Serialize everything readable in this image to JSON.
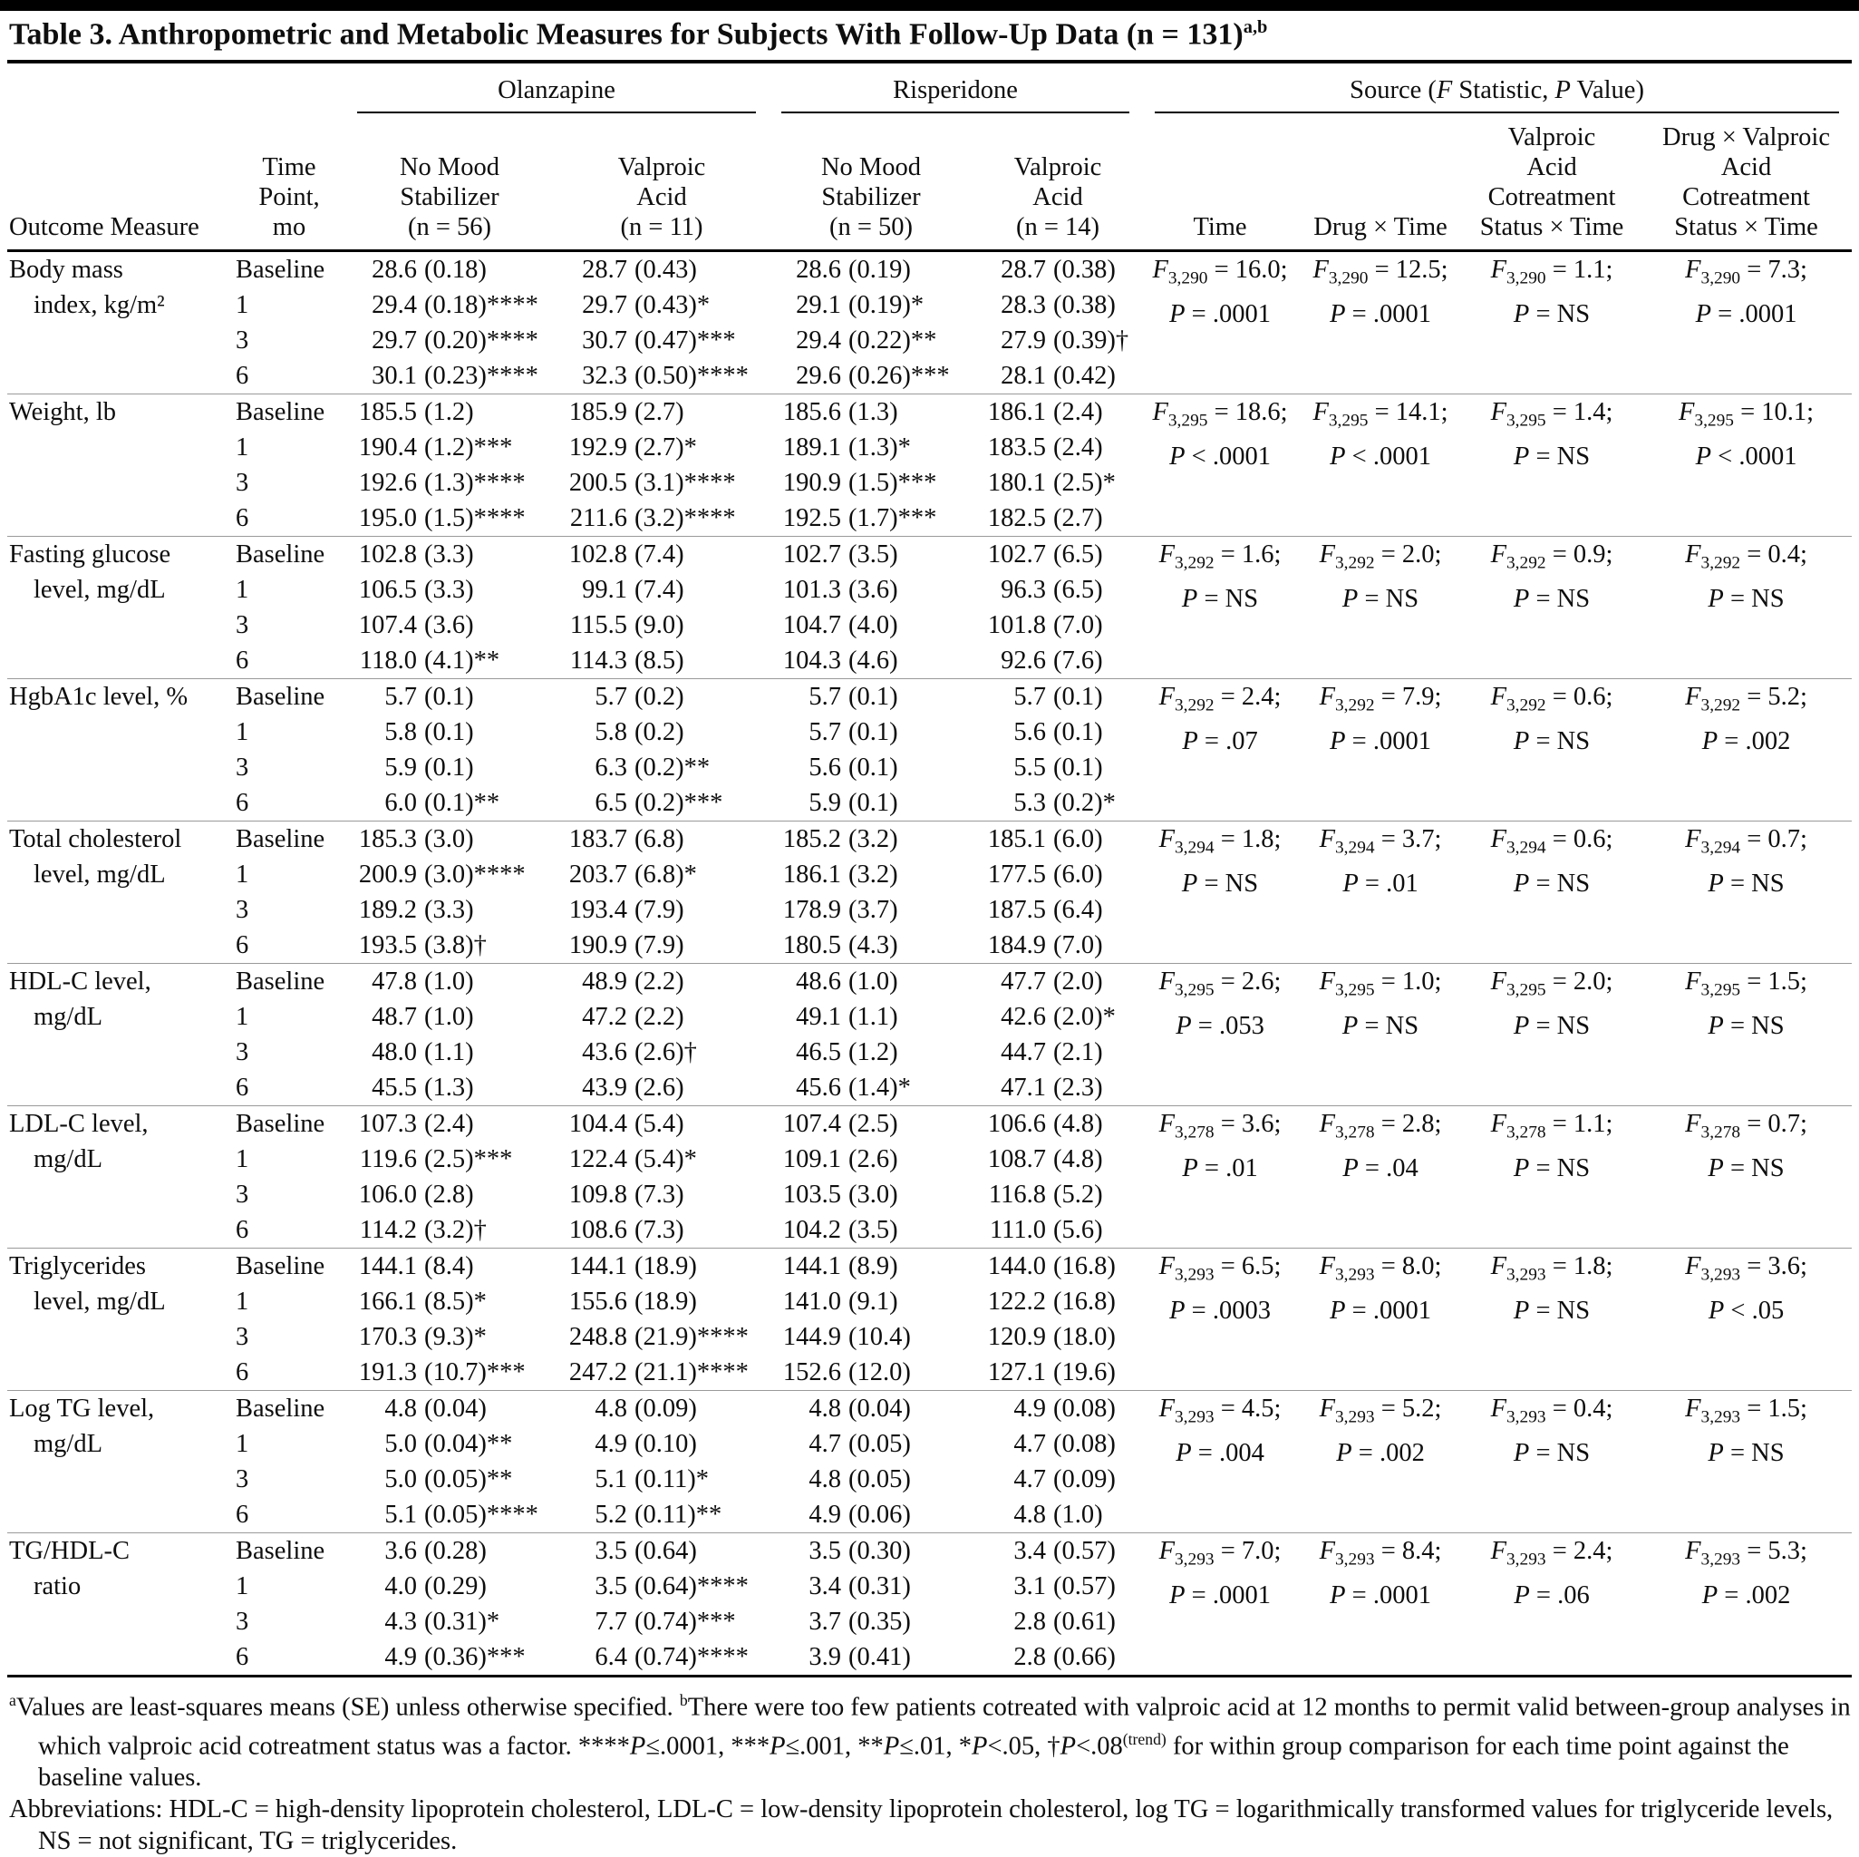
{
  "title": {
    "runs": [
      {
        "t": "Table 3. Anthropometric and Metabolic Measures for Subjects With Follow-Up Data (n = 131)"
      },
      {
        "t": "a,b",
        "sup": true
      }
    ]
  },
  "header": {
    "outcome": "Outcome Measure",
    "time_point": [
      "Time",
      "Point,",
      "mo"
    ],
    "olanzapine": {
      "label": "Olanzapine",
      "col1": [
        "No Mood",
        "Stabilizer",
        "(n = 56)"
      ],
      "col2": [
        "Valproic",
        "Acid",
        "(n = 11)"
      ]
    },
    "risperidone": {
      "label": "Risperidone",
      "col1": [
        "No Mood",
        "Stabilizer",
        "(n = 50)"
      ],
      "col2": [
        "Valproic",
        "Acid",
        "(n = 14)"
      ]
    },
    "source": {
      "label_runs": [
        {
          "t": "Source ("
        },
        {
          "t": "F",
          "i": true
        },
        {
          "t": " Statistic, "
        },
        {
          "t": "P",
          "i": true
        },
        {
          "t": " Value)"
        }
      ],
      "col1": [
        "Time"
      ],
      "col2": [
        "Drug × Time"
      ],
      "col3": [
        "Valproic",
        "Acid",
        "Cotreatment",
        "Status × Time"
      ],
      "col4": [
        "Drug × Valproic",
        "Acid",
        "Cotreatment",
        "Status × Time"
      ]
    }
  },
  "measures": [
    {
      "name": [
        "Body mass",
        "index, kg/m²"
      ],
      "rows": [
        {
          "time": "Baseline",
          "v": [
            "28.6 (0.18)",
            "28.7 (0.43)",
            "28.6 (0.19)",
            "28.7 (0.38)"
          ]
        },
        {
          "time": "1",
          "v": [
            "29.4 (0.18)****",
            "29.7 (0.43)*",
            "29.1 (0.19)*",
            "28.3 (0.38)"
          ]
        },
        {
          "time": "3",
          "v": [
            "29.7 (0.20)****",
            "30.7 (0.47)***",
            "29.4 (0.22)**",
            "27.9 (0.39)†"
          ]
        },
        {
          "time": "6",
          "v": [
            "30.1 (0.23)****",
            "32.3 (0.50)****",
            "29.6 (0.26)***",
            "28.1 (0.42)"
          ]
        }
      ],
      "stats": [
        {
          "df": "3,290",
          "f": "16.0",
          "p": "= .0001"
        },
        {
          "df": "3,290",
          "f": "12.5",
          "p": "= .0001"
        },
        {
          "df": "3,290",
          "f": "1.1",
          "p": "= NS"
        },
        {
          "df": "3,290",
          "f": "7.3",
          "p": "= .0001"
        }
      ]
    },
    {
      "name": [
        "Weight, lb"
      ],
      "rows": [
        {
          "time": "Baseline",
          "v": [
            "185.5 (1.2)",
            "185.9 (2.7)",
            "185.6 (1.3)",
            "186.1 (2.4)"
          ]
        },
        {
          "time": "1",
          "v": [
            "190.4 (1.2)***",
            "192.9 (2.7)*",
            "189.1 (1.3)*",
            "183.5 (2.4)"
          ]
        },
        {
          "time": "3",
          "v": [
            "192.6 (1.3)****",
            "200.5 (3.1)****",
            "190.9 (1.5)***",
            "180.1 (2.5)*"
          ]
        },
        {
          "time": "6",
          "v": [
            "195.0 (1.5)****",
            "211.6 (3.2)****",
            "192.5 (1.7)***",
            "182.5 (2.7)"
          ]
        }
      ],
      "stats": [
        {
          "df": "3,295",
          "f": "18.6",
          "p": "< .0001"
        },
        {
          "df": "3,295",
          "f": "14.1",
          "p": "< .0001"
        },
        {
          "df": "3,295",
          "f": "1.4",
          "p": "= NS"
        },
        {
          "df": "3,295",
          "f": "10.1",
          "p": "< .0001"
        }
      ]
    },
    {
      "name": [
        "Fasting glucose",
        "level, mg/dL"
      ],
      "rows": [
        {
          "time": "Baseline",
          "v": [
            "102.8 (3.3)",
            "102.8 (7.4)",
            "102.7 (3.5)",
            "102.7 (6.5)"
          ]
        },
        {
          "time": "1",
          "v": [
            "106.5 (3.3)",
            "99.1 (7.4)",
            "101.3 (3.6)",
            "96.3 (6.5)"
          ]
        },
        {
          "time": "3",
          "v": [
            "107.4 (3.6)",
            "115.5 (9.0)",
            "104.7 (4.0)",
            "101.8 (7.0)"
          ]
        },
        {
          "time": "6",
          "v": [
            "118.0 (4.1)**",
            "114.3 (8.5)",
            "104.3 (4.6)",
            "92.6 (7.6)"
          ]
        }
      ],
      "stats": [
        {
          "df": "3,292",
          "f": "1.6",
          "p": "= NS"
        },
        {
          "df": "3,292",
          "f": "2.0",
          "p": "= NS"
        },
        {
          "df": "3,292",
          "f": "0.9",
          "p": "= NS"
        },
        {
          "df": "3,292",
          "f": "0.4",
          "p": "= NS"
        }
      ]
    },
    {
      "name": [
        "HgbA1c level, %"
      ],
      "rows": [
        {
          "time": "Baseline",
          "v": [
            "5.7 (0.1)",
            "5.7 (0.2)",
            "5.7 (0.1)",
            "5.7 (0.1)"
          ]
        },
        {
          "time": "1",
          "v": [
            "5.8 (0.1)",
            "5.8 (0.2)",
            "5.7 (0.1)",
            "5.6 (0.1)"
          ]
        },
        {
          "time": "3",
          "v": [
            "5.9 (0.1)",
            "6.3 (0.2)**",
            "5.6 (0.1)",
            "5.5 (0.1)"
          ]
        },
        {
          "time": "6",
          "v": [
            "6.0 (0.1)**",
            "6.5 (0.2)***",
            "5.9 (0.1)",
            "5.3 (0.2)*"
          ]
        }
      ],
      "stats": [
        {
          "df": "3,292",
          "f": "2.4",
          "p": "= .07"
        },
        {
          "df": "3,292",
          "f": "7.9",
          "p": "= .0001"
        },
        {
          "df": "3,292",
          "f": "0.6",
          "p": "= NS"
        },
        {
          "df": "3,292",
          "f": "5.2",
          "p": "= .002"
        }
      ]
    },
    {
      "name": [
        "Total cholesterol",
        "level, mg/dL"
      ],
      "rows": [
        {
          "time": "Baseline",
          "v": [
            "185.3 (3.0)",
            "183.7 (6.8)",
            "185.2 (3.2)",
            "185.1 (6.0)"
          ]
        },
        {
          "time": "1",
          "v": [
            "200.9 (3.0)****",
            "203.7 (6.8)*",
            "186.1 (3.2)",
            "177.5 (6.0)"
          ]
        },
        {
          "time": "3",
          "v": [
            "189.2 (3.3)",
            "193.4 (7.9)",
            "178.9 (3.7)",
            "187.5 (6.4)"
          ]
        },
        {
          "time": "6",
          "v": [
            "193.5 (3.8)†",
            "190.9 (7.9)",
            "180.5 (4.3)",
            "184.9 (7.0)"
          ]
        }
      ],
      "stats": [
        {
          "df": "3,294",
          "f": "1.8",
          "p": "= NS"
        },
        {
          "df": "3,294",
          "f": "3.7",
          "p": "= .01"
        },
        {
          "df": "3,294",
          "f": "0.6",
          "p": "= NS"
        },
        {
          "df": "3,294",
          "f": "0.7",
          "p": "= NS"
        }
      ]
    },
    {
      "name": [
        "HDL-C level,",
        "mg/dL"
      ],
      "rows": [
        {
          "time": "Baseline",
          "v": [
            "47.8 (1.0)",
            "48.9 (2.2)",
            "48.6 (1.0)",
            "47.7 (2.0)"
          ]
        },
        {
          "time": "1",
          "v": [
            "48.7 (1.0)",
            "47.2 (2.2)",
            "49.1 (1.1)",
            "42.6 (2.0)*"
          ]
        },
        {
          "time": "3",
          "v": [
            "48.0 (1.1)",
            "43.6 (2.6)†",
            "46.5 (1.2)",
            "44.7 (2.1)"
          ]
        },
        {
          "time": "6",
          "v": [
            "45.5 (1.3)",
            "43.9 (2.6)",
            "45.6 (1.4)*",
            "47.1 (2.3)"
          ]
        }
      ],
      "stats": [
        {
          "df": "3,295",
          "f": "2.6",
          "p": "= .053"
        },
        {
          "df": "3,295",
          "f": "1.0",
          "p": "= NS"
        },
        {
          "df": "3,295",
          "f": "2.0",
          "p": "= NS"
        },
        {
          "df": "3,295",
          "f": "1.5",
          "p": "= NS"
        }
      ]
    },
    {
      "name": [
        "LDL-C level,",
        "mg/dL"
      ],
      "rows": [
        {
          "time": "Baseline",
          "v": [
            "107.3 (2.4)",
            "104.4 (5.4)",
            "107.4 (2.5)",
            "106.6 (4.8)"
          ]
        },
        {
          "time": "1",
          "v": [
            "119.6 (2.5)***",
            "122.4 (5.4)*",
            "109.1 (2.6)",
            "108.7 (4.8)"
          ]
        },
        {
          "time": "3",
          "v": [
            "106.0 (2.8)",
            "109.8 (7.3)",
            "103.5 (3.0)",
            "116.8 (5.2)"
          ]
        },
        {
          "time": "6",
          "v": [
            "114.2 (3.2)†",
            "108.6 (7.3)",
            "104.2 (3.5)",
            "111.0 (5.6)"
          ]
        }
      ],
      "stats": [
        {
          "df": "3,278",
          "f": "3.6",
          "p": "= .01"
        },
        {
          "df": "3,278",
          "f": "2.8",
          "p": "= .04"
        },
        {
          "df": "3,278",
          "f": "1.1",
          "p": "= NS"
        },
        {
          "df": "3,278",
          "f": "0.7",
          "p": "= NS"
        }
      ]
    },
    {
      "name": [
        "Triglycerides",
        "level, mg/dL"
      ],
      "rows": [
        {
          "time": "Baseline",
          "v": [
            "144.1 (8.4)",
            "144.1 (18.9)",
            "144.1 (8.9)",
            "144.0 (16.8)"
          ]
        },
        {
          "time": "1",
          "v": [
            "166.1 (8.5)*",
            "155.6 (18.9)",
            "141.0 (9.1)",
            "122.2 (16.8)"
          ]
        },
        {
          "time": "3",
          "v": [
            "170.3 (9.3)*",
            "248.8 (21.9)****",
            "144.9 (10.4)",
            "120.9 (18.0)"
          ]
        },
        {
          "time": "6",
          "v": [
            "191.3 (10.7)***",
            "247.2 (21.1)****",
            "152.6 (12.0)",
            "127.1 (19.6)"
          ]
        }
      ],
      "stats": [
        {
          "df": "3,293",
          "f": "6.5",
          "p": "= .0003"
        },
        {
          "df": "3,293",
          "f": "8.0",
          "p": "= .0001"
        },
        {
          "df": "3,293",
          "f": "1.8",
          "p": "= NS"
        },
        {
          "df": "3,293",
          "f": "3.6",
          "p": "< .05"
        }
      ]
    },
    {
      "name": [
        "Log TG level,",
        "mg/dL"
      ],
      "rows": [
        {
          "time": "Baseline",
          "v": [
            "4.8 (0.04)",
            "4.8 (0.09)",
            "4.8 (0.04)",
            "4.9 (0.08)"
          ]
        },
        {
          "time": "1",
          "v": [
            "5.0 (0.04)**",
            "4.9 (0.10)",
            "4.7 (0.05)",
            "4.7 (0.08)"
          ]
        },
        {
          "time": "3",
          "v": [
            "5.0 (0.05)**",
            "5.1 (0.11)*",
            "4.8 (0.05)",
            "4.7 (0.09)"
          ]
        },
        {
          "time": "6",
          "v": [
            "5.1 (0.05)****",
            "5.2 (0.11)**",
            "4.9 (0.06)",
            "4.8 (1.0)"
          ]
        }
      ],
      "stats": [
        {
          "df": "3,293",
          "f": "4.5",
          "p": "= .004"
        },
        {
          "df": "3,293",
          "f": "5.2",
          "p": "= .002"
        },
        {
          "df": "3,293",
          "f": "0.4",
          "p": "= NS"
        },
        {
          "df": "3,293",
          "f": "1.5",
          "p": "= NS"
        }
      ]
    },
    {
      "name": [
        "TG/HDL-C",
        "ratio"
      ],
      "rows": [
        {
          "time": "Baseline",
          "v": [
            "3.6 (0.28)",
            "3.5 (0.64)",
            "3.5 (0.30)",
            "3.4 (0.57)"
          ]
        },
        {
          "time": "1",
          "v": [
            "4.0 (0.29)",
            "3.5 (0.64)****",
            "3.4 (0.31)",
            "3.1 (0.57)"
          ]
        },
        {
          "time": "3",
          "v": [
            "4.3 (0.31)*",
            "7.7 (0.74)***",
            "3.7 (0.35)",
            "2.8 (0.61)"
          ]
        },
        {
          "time": "6",
          "v": [
            "4.9 (0.36)***",
            "6.4 (0.74)****",
            "3.9 (0.41)",
            "2.8 (0.66)"
          ]
        }
      ],
      "stats": [
        {
          "df": "3,293",
          "f": "7.0",
          "p": "= .0001"
        },
        {
          "df": "3,293",
          "f": "8.4",
          "p": "= .0001"
        },
        {
          "df": "3,293",
          "f": "2.4",
          "p": "= .06"
        },
        {
          "df": "3,293",
          "f": "5.3",
          "p": "= .002"
        }
      ]
    }
  ],
  "footnotes": [
    {
      "runs": [
        {
          "t": "a",
          "sup": true
        },
        {
          "t": "Values are least-squares means (SE) unless otherwise specified.  "
        },
        {
          "t": "b",
          "sup": true
        },
        {
          "t": "There were too few patients cotreated with valproic acid at 12 months to permit valid between-group analyses in which valproic acid cotreatment status was a factor.  ****"
        },
        {
          "t": "P",
          "i": true
        },
        {
          "t": "≤.0001, ***"
        },
        {
          "t": "P",
          "i": true
        },
        {
          "t": "≤.001, **"
        },
        {
          "t": "P",
          "i": true
        },
        {
          "t": "≤.01, *"
        },
        {
          "t": "P",
          "i": true
        },
        {
          "t": "<.05, †"
        },
        {
          "t": "P",
          "i": true
        },
        {
          "t": "<.08"
        },
        {
          "t": "(trend)",
          "sup": true
        },
        {
          "t": " for within group comparison for each time point against the baseline values."
        }
      ]
    },
    {
      "runs": [
        {
          "t": "Abbreviations: HDL-C = high-density lipoprotein cholesterol, LDL-C = low-density lipoprotein cholesterol, log TG = logarithmically transformed values for triglyceride levels, NS = not significant, TG = triglycerides."
        }
      ]
    }
  ]
}
